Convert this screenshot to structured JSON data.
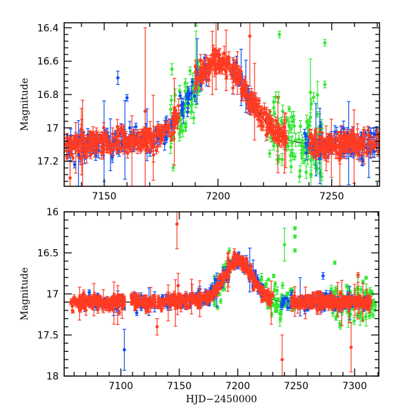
{
  "chart_data": [
    {
      "type": "scatter",
      "panel": "top",
      "title": "",
      "xlabel": "",
      "ylabel": "Magnitude",
      "xlim": [
        7132.4,
        7271
      ],
      "ylim": [
        17.35,
        16.37
      ],
      "y_inverted": true,
      "x_ticks": [
        7150,
        7200,
        7250
      ],
      "x_tick_labels": [
        "7150",
        "7200",
        "7250"
      ],
      "y_ticks": [
        16.4,
        16.6,
        16.8,
        17,
        17.2
      ],
      "y_tick_labels": [
        "16.4",
        "16.6",
        "16.8",
        "17",
        "17.2"
      ],
      "grid": false,
      "legend": "none",
      "model_curve": {
        "color": "#000000",
        "baseline": 17.1,
        "peak_mag": 16.6,
        "peak_x": 7200,
        "rise_start": 7150,
        "fall_end": 7240
      },
      "series": [
        {
          "name": "red",
          "color": "#ff3b22",
          "x_ranges": [
            [
              7133,
              7183
            ],
            [
              7190,
              7205
            ],
            [
              7205,
              7230
            ],
            [
              7240,
              7271
            ]
          ],
          "count": 700,
          "scatter": 0.035
        },
        {
          "name": "blue",
          "color": "#0a4ff5",
          "x_ranges": [
            [
              7134,
              7180
            ],
            [
              7183,
              7195
            ],
            [
              7206,
              7216
            ],
            [
              7238,
              7270
            ]
          ],
          "count": 300,
          "scatter": 0.04
        },
        {
          "name": "green",
          "color": "#36e636",
          "x_ranges": [
            [
              7179,
              7192
            ],
            [
              7222,
              7246
            ]
          ],
          "count": 160,
          "scatter": 0.12
        }
      ],
      "outliers": [
        {
          "series": "blue",
          "x": 7156,
          "y": 16.7,
          "err": 0.04
        },
        {
          "series": "blue",
          "x": 7160,
          "y": 16.82,
          "err": 0.02
        },
        {
          "series": "blue",
          "x": 7137,
          "y": 17.22,
          "err": 0.02
        },
        {
          "series": "green",
          "x": 7247,
          "y": 16.49,
          "err": 0.02
        },
        {
          "series": "green",
          "x": 7247,
          "y": 16.74,
          "err": 0.02
        },
        {
          "series": "green",
          "x": 7227,
          "y": 16.44,
          "err": 0.02
        },
        {
          "series": "red",
          "x": 7168,
          "y": 16.9,
          "err": 0.5
        },
        {
          "series": "red",
          "x": 7214,
          "y": 16.45,
          "err": 0.3
        },
        {
          "series": "red",
          "x": 7135,
          "y": 17.3,
          "err": 0.1
        }
      ]
    },
    {
      "type": "scatter",
      "panel": "bottom",
      "title": "",
      "xlabel": "HJD−2450000",
      "ylabel": "Magnitude",
      "xlim": [
        7051.5,
        7320.7
      ],
      "ylim": [
        18,
        16
      ],
      "y_inverted": true,
      "x_ticks": [
        7100,
        7150,
        7200,
        7250,
        7300
      ],
      "x_tick_labels": [
        "7100",
        "7150",
        "7200",
        "7250",
        "7300"
      ],
      "y_ticks": [
        16,
        16.5,
        17,
        17.5,
        18
      ],
      "y_tick_labels": [
        "16",
        "16.5",
        "17",
        "17.5",
        "18"
      ],
      "grid": false,
      "legend": "none",
      "model_curve": {
        "color": "#000000",
        "baseline": 17.1,
        "peak_mag": 16.6,
        "peak_x": 7200,
        "rise_start": 7150,
        "fall_end": 7240
      },
      "series": [
        {
          "name": "red",
          "color": "#ff3b22",
          "x_ranges": [
            [
              7057,
              7103
            ],
            [
              7109,
              7129
            ],
            [
              7131,
              7230
            ],
            [
              7246,
              7314
            ]
          ],
          "count": 900,
          "scatter": 0.04
        },
        {
          "name": "blue",
          "color": "#0a4ff5",
          "x_ranges": [
            [
              7065,
              7103
            ],
            [
              7109,
              7129
            ],
            [
              7135,
              7225
            ],
            [
              7237,
              7310
            ]
          ],
          "count": 350,
          "scatter": 0.05
        },
        {
          "name": "green",
          "color": "#36e636",
          "x_ranges": [
            [
              7180,
              7195
            ],
            [
              7220,
              7250
            ],
            [
              7280,
              7318
            ]
          ],
          "count": 180,
          "scatter": 0.1
        }
      ],
      "outliers": [
        {
          "series": "blue",
          "x": 7103,
          "y": 17.68,
          "err": 0.25
        },
        {
          "series": "blue",
          "x": 7073,
          "y": 16.98,
          "err": 0.03
        },
        {
          "series": "blue",
          "x": 7273,
          "y": 16.78,
          "err": 0.04
        },
        {
          "series": "green",
          "x": 7249,
          "y": 16.2,
          "err": 0.02
        },
        {
          "series": "green",
          "x": 7249,
          "y": 16.3,
          "err": 0.02
        },
        {
          "series": "green",
          "x": 7249,
          "y": 16.47,
          "err": 0.02
        },
        {
          "series": "green",
          "x": 7240,
          "y": 16.4,
          "err": 0.2
        },
        {
          "series": "green",
          "x": 7283,
          "y": 16.62,
          "err": 0.02
        },
        {
          "series": "red",
          "x": 7148,
          "y": 16.15,
          "err": 0.3
        },
        {
          "series": "red",
          "x": 7238,
          "y": 17.8,
          "err": 0.3
        },
        {
          "series": "red",
          "x": 7297,
          "y": 17.65,
          "err": 0.3
        },
        {
          "series": "red",
          "x": 7303,
          "y": 16.77,
          "err": 0.03
        },
        {
          "series": "red",
          "x": 7131,
          "y": 17.4,
          "err": 0.1
        },
        {
          "series": "red",
          "x": 7149,
          "y": 16.9,
          "err": 0.15
        }
      ]
    }
  ]
}
